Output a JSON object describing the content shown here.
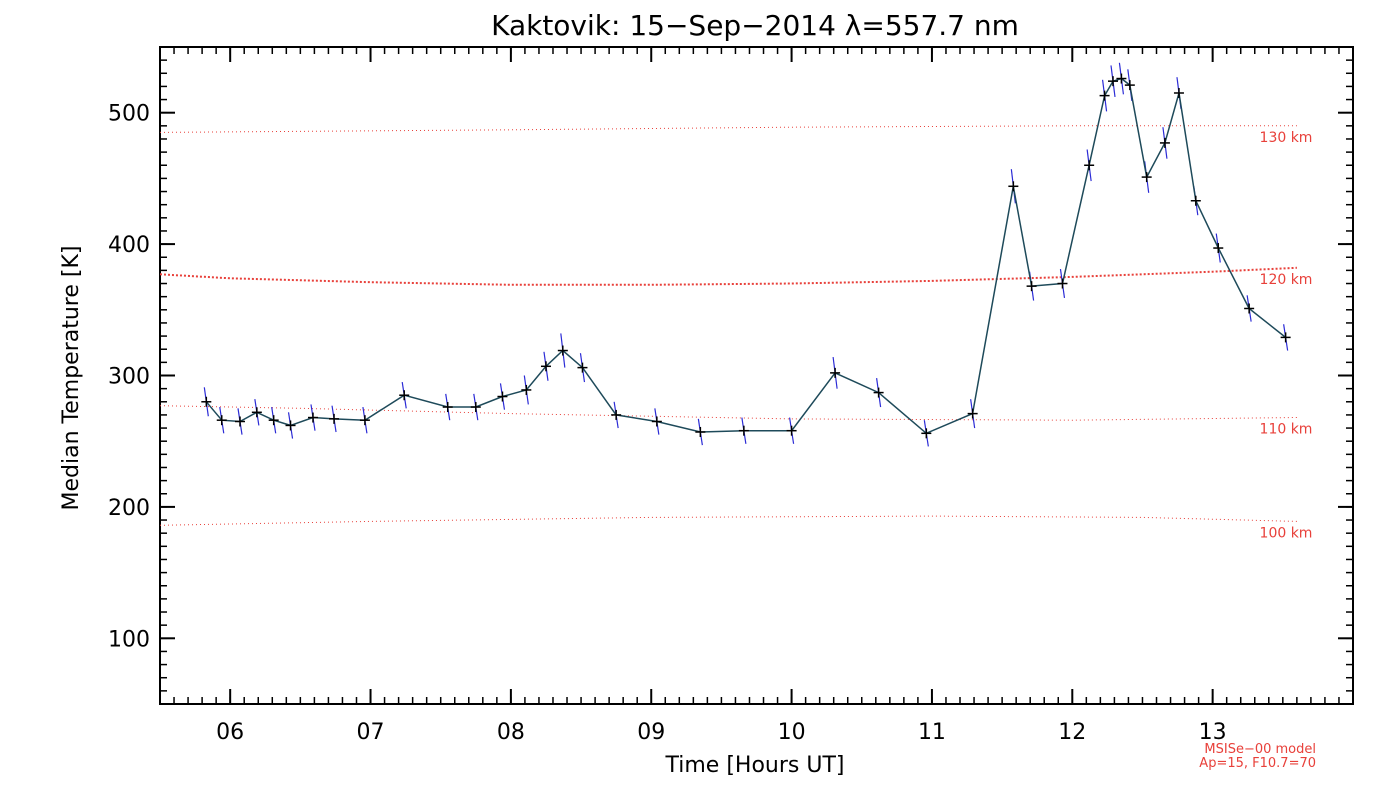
{
  "chart_data": {
    "type": "line",
    "title": "Kaktovik: 15−Sep−2014 λ=557.7 nm",
    "xlabel": "Time [Hours UT]",
    "ylabel": "Median Temperature [K]",
    "xlim": [
      5.5,
      14.0
    ],
    "ylim": [
      50,
      550
    ],
    "x_ticks": [
      6,
      7,
      8,
      9,
      10,
      11,
      12,
      13
    ],
    "x_tick_labels": [
      "06",
      "07",
      "08",
      "09",
      "10",
      "11",
      "12",
      "13"
    ],
    "y_ticks": [
      100,
      200,
      300,
      400,
      500
    ],
    "y_tick_labels": [
      "100",
      "200",
      "300",
      "400",
      "500"
    ],
    "series": [
      {
        "name": "Median Temperature",
        "color": "#1e4a5a",
        "error_color": "#2b2bd6",
        "x": [
          5.83,
          5.94,
          6.07,
          6.19,
          6.31,
          6.43,
          6.59,
          6.74,
          6.96,
          7.24,
          7.55,
          7.75,
          7.94,
          8.11,
          8.25,
          8.37,
          8.51,
          8.75,
          9.04,
          9.35,
          9.66,
          10.0,
          10.31,
          10.62,
          10.96,
          11.29,
          11.58,
          11.71,
          11.93,
          12.12,
          12.23,
          12.29,
          12.35,
          12.41,
          12.53,
          12.66,
          12.76,
          12.88,
          13.04,
          13.26,
          13.52
        ],
        "y": [
          280,
          266,
          265,
          272,
          266,
          262,
          268,
          267,
          266,
          285,
          276,
          276,
          284,
          289,
          307,
          319,
          306,
          270,
          265,
          257,
          258,
          258,
          302,
          287,
          256,
          271,
          444,
          368,
          370,
          460,
          513,
          524,
          526,
          521,
          451,
          477,
          515,
          433,
          397,
          351,
          329
        ],
        "error": [
          11,
          10,
          10,
          10,
          10,
          10,
          10,
          10,
          10,
          10,
          10,
          10,
          10,
          11,
          11,
          13,
          11,
          10,
          10,
          10,
          10,
          10,
          12,
          11,
          10,
          11,
          13,
          11,
          11,
          12,
          12,
          12,
          12,
          12,
          12,
          12,
          12,
          11,
          11,
          10,
          10
        ]
      }
    ],
    "model_lines": [
      {
        "label": "130 km",
        "color": "#e8403a",
        "x": [
          5.5,
          8.0,
          10.0,
          12.0,
          13.6
        ],
        "y": [
          485,
          487,
          489,
          490,
          490
        ]
      },
      {
        "label": "120 km",
        "color": "#e8403a",
        "x": [
          5.5,
          6.0,
          7.0,
          8.0,
          9.0,
          10.0,
          11.0,
          12.0,
          13.0,
          13.6
        ],
        "y": [
          377,
          374,
          371,
          369,
          369,
          370,
          372,
          375,
          379,
          382
        ]
      },
      {
        "label": "110 km",
        "color": "#e8403a",
        "x": [
          5.5,
          6.5,
          8.0,
          10.0,
          12.0,
          13.6
        ],
        "y": [
          277,
          275,
          271,
          267,
          266,
          268
        ]
      },
      {
        "label": "100 km",
        "color": "#e8403a",
        "x": [
          5.5,
          7.0,
          9.0,
          11.0,
          12.5,
          13.6
        ],
        "y": [
          186,
          189,
          192,
          193,
          192,
          189
        ]
      }
    ],
    "annotations": {
      "model_line1": "MSISe−00 model",
      "model_line2": "Ap=15, F10.7=70"
    }
  }
}
